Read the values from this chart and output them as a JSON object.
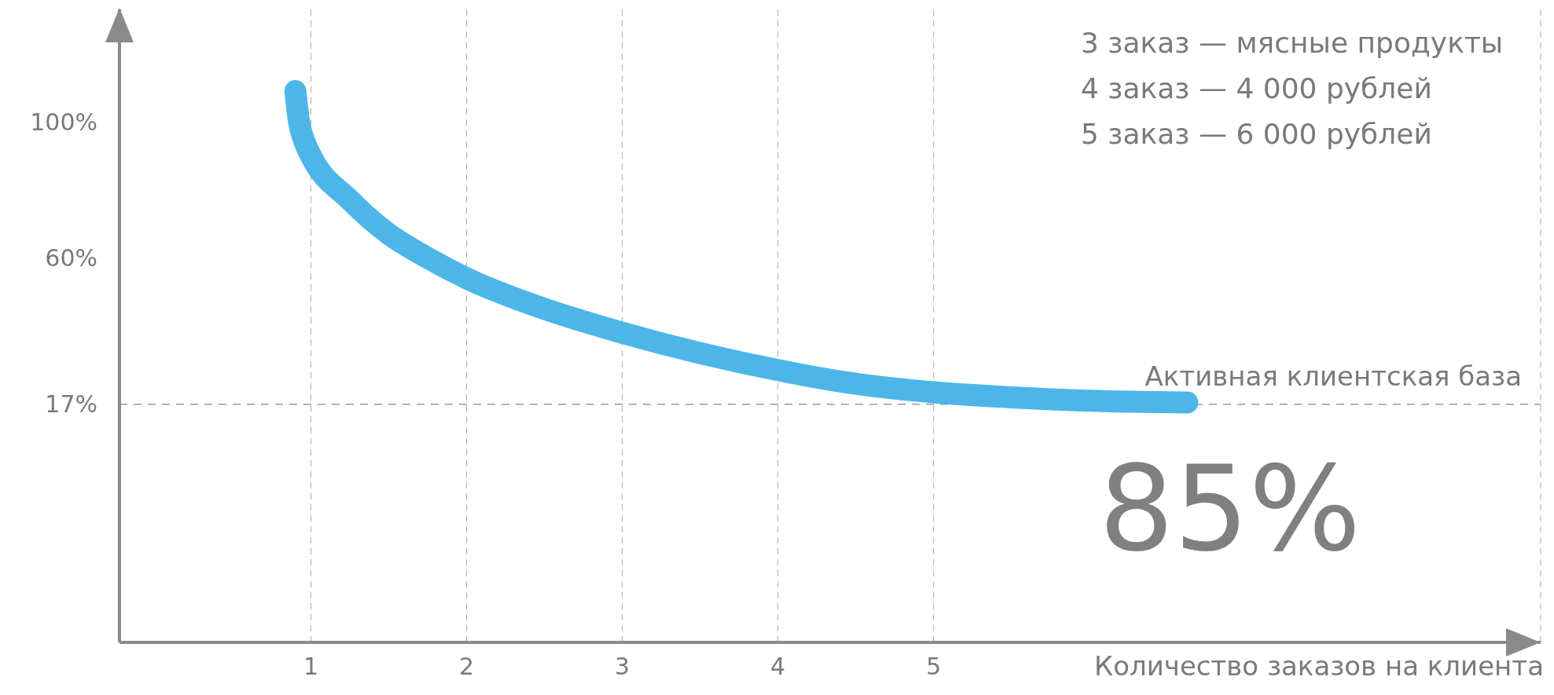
{
  "chart_data": {
    "type": "line",
    "xlabel": "Количество заказов на клиента",
    "x": [
      0.9,
      0.92,
      0.96,
      1,
      1.25,
      1.5,
      1.75,
      2,
      2.5,
      3,
      3.5,
      4,
      4.5,
      5,
      5.5,
      6,
      6.63
    ],
    "series": [
      {
        "color": "#4db6e8",
        "values": [
          109,
          101,
          94,
          90,
          77,
          67,
          60,
          54,
          45,
          38,
          32,
          27,
          23,
          20.5,
          19,
          18,
          17.5
        ]
      }
    ],
    "xlim": [
      -0.23,
      8.9
    ],
    "xticks": [
      1,
      2,
      3,
      4,
      5
    ],
    "ylim": [
      -53,
      133
    ],
    "yticks": [
      {
        "value": 17,
        "label": "17%"
      },
      {
        "value": 60,
        "label": "60%"
      },
      {
        "value": 100,
        "label": "100%"
      }
    ],
    "grid": "x",
    "marker": "none",
    "line_style": "solid",
    "ref_lines": [
      {
        "axis": "y",
        "value": 17,
        "label": "Активная клиентская база",
        "color": "#999999",
        "line_style": "dashed"
      }
    ],
    "annotations": [
      "3 заказ — мясные продукты",
      "4 заказ — 4 000 рублей",
      "5 заказ — 6 000 рублей",
      "85%"
    ]
  }
}
